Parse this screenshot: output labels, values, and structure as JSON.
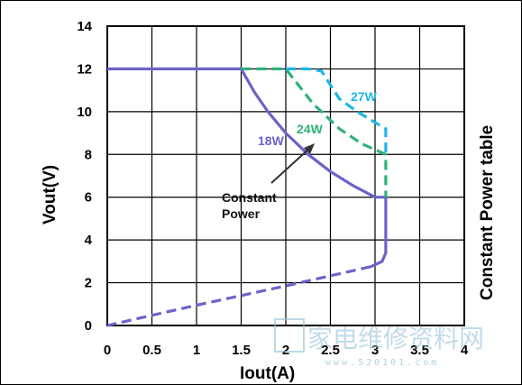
{
  "chart_data": {
    "type": "line",
    "xlabel": "Iout(A)",
    "ylabel": "Vout(V)",
    "side_title": "Constant Power table",
    "xlim": [
      0,
      4
    ],
    "ylim": [
      0,
      14
    ],
    "x_ticks": [
      "0",
      "0.5",
      "1",
      "1.5",
      "2",
      "2.5",
      "3",
      "3.5",
      "4"
    ],
    "y_ticks": [
      "0",
      "2",
      "4",
      "6",
      "8",
      "10",
      "12",
      "14"
    ],
    "grid": true,
    "series": [
      {
        "name": "18W",
        "color": "#6b63c9",
        "style": "solid",
        "points": [
          [
            0,
            12
          ],
          [
            1.5,
            12
          ],
          [
            1.65,
            10.9
          ],
          [
            1.8,
            10.0
          ],
          [
            2.0,
            9.0
          ],
          [
            2.25,
            8.0
          ],
          [
            2.5,
            7.2
          ],
          [
            2.75,
            6.55
          ],
          [
            3.0,
            6.0
          ],
          [
            3.12,
            6.0
          ],
          [
            3.12,
            3.4
          ],
          [
            3.08,
            3.0
          ],
          [
            2.95,
            2.75
          ]
        ]
      },
      {
        "name": "",
        "color": "#6b63c9",
        "style": "dashed",
        "points": [
          [
            2.95,
            2.75
          ],
          [
            2.0,
            1.85
          ],
          [
            1.0,
            0.95
          ],
          [
            0,
            0
          ]
        ]
      },
      {
        "name": "24W",
        "color": "#2fb27a",
        "style": "dashed",
        "points": [
          [
            1.5,
            12
          ],
          [
            2.0,
            12
          ],
          [
            2.3,
            10.4
          ],
          [
            2.6,
            9.2
          ],
          [
            2.85,
            8.5
          ],
          [
            3.12,
            8.0
          ],
          [
            3.12,
            6.0
          ]
        ]
      },
      {
        "name": "27W",
        "color": "#1fb6e6",
        "style": "dashed",
        "points": [
          [
            2.0,
            12
          ],
          [
            2.25,
            12
          ],
          [
            2.4,
            11.9
          ],
          [
            2.6,
            10.6
          ],
          [
            2.8,
            10.0
          ],
          [
            3.0,
            9.5
          ],
          [
            3.12,
            9.2
          ],
          [
            3.12,
            8.0
          ]
        ]
      }
    ],
    "annotations": [
      {
        "text": "Constant",
        "line": 1
      },
      {
        "text": "Power",
        "line": 2
      }
    ]
  },
  "watermark": {
    "text": "家电维修资料网",
    "url": "www.520101.com"
  }
}
